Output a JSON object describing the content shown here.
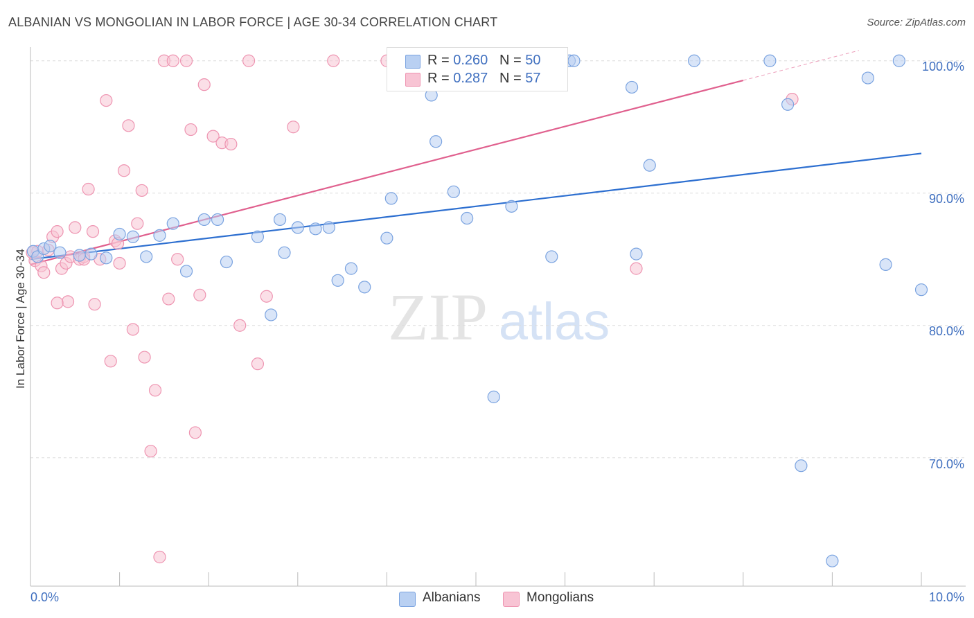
{
  "title": "ALBANIAN VS MONGOLIAN IN LABOR FORCE | AGE 30-34 CORRELATION CHART",
  "source": "Source: ZipAtlas.com",
  "watermark": {
    "zip": "ZIP",
    "atlas": "atlas"
  },
  "colors": {
    "albanian_fill": "#b9d0f2",
    "albanian_stroke": "#7aa3e0",
    "albanian_line": "#2d6fd0",
    "mongolian_fill": "#f8c4d4",
    "mongolian_stroke": "#ee94b1",
    "mongolian_line": "#e0608e",
    "axis_text": "#3f6fbf",
    "grid": "#dcdcdc"
  },
  "legend": {
    "albanian": {
      "r_label": "R =",
      "r_value": "0.260",
      "n_label": "N =",
      "n_value": "50"
    },
    "mongolian": {
      "r_label": "R =",
      "r_value": "0.287",
      "n_label": "N =",
      "n_value": "57"
    }
  },
  "bottom_legend": {
    "albanians": "Albanians",
    "mongolians": "Mongolians"
  },
  "chart_data": {
    "type": "scatter",
    "title": "ALBANIAN VS MONGOLIAN IN LABOR FORCE | AGE 30-34 CORRELATION CHART",
    "xlabel": "",
    "ylabel": "In Labor Force | Age 30-34",
    "xlim": [
      0,
      10
    ],
    "ylim": [
      60.3,
      102.5
    ],
    "x_tick_labels": {
      "left": "0.0%",
      "right": "10.0%"
    },
    "y_ticks": [
      {
        "value": 100,
        "label": "100.0%"
      },
      {
        "value": 90,
        "label": "90.0%"
      },
      {
        "value": 80,
        "label": "80.0%"
      },
      {
        "value": 70,
        "label": "70.0%"
      }
    ],
    "series": [
      {
        "name": "Albanians",
        "r": 0.26,
        "n": 50,
        "trend": {
          "x": [
            0,
            10
          ],
          "y": [
            85.0,
            93.0
          ],
          "dashed_from_x": null
        },
        "points": [
          [
            0.03,
            85.6
          ],
          [
            0.08,
            85.2
          ],
          [
            0.15,
            85.8
          ],
          [
            0.22,
            86.0
          ],
          [
            0.33,
            85.5
          ],
          [
            0.55,
            85.3
          ],
          [
            0.68,
            85.4
          ],
          [
            0.85,
            85.1
          ],
          [
            1.0,
            86.9
          ],
          [
            1.15,
            86.7
          ],
          [
            1.3,
            85.2
          ],
          [
            1.45,
            86.8
          ],
          [
            1.6,
            87.7
          ],
          [
            1.75,
            84.1
          ],
          [
            1.95,
            88.0
          ],
          [
            2.1,
            88.0
          ],
          [
            2.2,
            84.8
          ],
          [
            2.55,
            86.7
          ],
          [
            2.7,
            80.8
          ],
          [
            2.8,
            88.0
          ],
          [
            2.85,
            85.5
          ],
          [
            3.0,
            87.4
          ],
          [
            3.2,
            87.3
          ],
          [
            3.35,
            87.4
          ],
          [
            3.45,
            83.4
          ],
          [
            3.6,
            84.3
          ],
          [
            3.75,
            82.9
          ],
          [
            4.0,
            86.6
          ],
          [
            4.05,
            89.6
          ],
          [
            4.5,
            97.4
          ],
          [
            4.55,
            93.9
          ],
          [
            4.75,
            90.1
          ],
          [
            4.9,
            88.1
          ],
          [
            5.2,
            74.6
          ],
          [
            5.4,
            89.0
          ],
          [
            5.85,
            85.2
          ],
          [
            6.05,
            100.0
          ],
          [
            6.1,
            100.0
          ],
          [
            6.75,
            98.0
          ],
          [
            6.95,
            92.1
          ],
          [
            6.8,
            85.4
          ],
          [
            7.45,
            100.0
          ],
          [
            8.3,
            100.0
          ],
          [
            8.5,
            96.7
          ],
          [
            8.65,
            69.4
          ],
          [
            9.0,
            62.2
          ],
          [
            9.4,
            98.7
          ],
          [
            9.6,
            84.6
          ],
          [
            9.75,
            100.0
          ],
          [
            10.0,
            82.7
          ]
        ]
      },
      {
        "name": "Mongolians",
        "r": 0.287,
        "n": 57,
        "trend": {
          "x": [
            0,
            10
          ],
          "y": [
            84.6,
            102.0
          ],
          "dashed_from_x": 8.0
        },
        "points": [
          [
            0.02,
            85.5
          ],
          [
            0.05,
            84.9
          ],
          [
            0.08,
            85.6
          ],
          [
            0.12,
            84.5
          ],
          [
            0.15,
            84.0
          ],
          [
            0.2,
            85.7
          ],
          [
            0.25,
            86.7
          ],
          [
            0.3,
            87.1
          ],
          [
            0.35,
            84.3
          ],
          [
            0.4,
            84.7
          ],
          [
            0.42,
            81.8
          ],
          [
            0.45,
            85.2
          ],
          [
            0.5,
            87.4
          ],
          [
            0.55,
            85.0
          ],
          [
            0.6,
            85.2
          ],
          [
            0.65,
            90.3
          ],
          [
            0.7,
            87.1
          ],
          [
            0.72,
            81.6
          ],
          [
            0.78,
            85.0
          ],
          [
            0.85,
            97.0
          ],
          [
            0.9,
            77.3
          ],
          [
            0.95,
            86.4
          ],
          [
            0.98,
            86.2
          ],
          [
            1.0,
            84.7
          ],
          [
            1.05,
            91.7
          ],
          [
            1.1,
            95.1
          ],
          [
            1.15,
            79.7
          ],
          [
            1.2,
            87.7
          ],
          [
            1.25,
            90.2
          ],
          [
            1.28,
            77.6
          ],
          [
            1.35,
            70.5
          ],
          [
            1.4,
            75.1
          ],
          [
            1.45,
            62.5
          ],
          [
            1.5,
            100.0
          ],
          [
            1.55,
            82.0
          ],
          [
            1.6,
            100.0
          ],
          [
            1.65,
            85.0
          ],
          [
            1.75,
            100.0
          ],
          [
            1.8,
            94.8
          ],
          [
            1.85,
            71.9
          ],
          [
            1.9,
            82.3
          ],
          [
            1.95,
            98.2
          ],
          [
            2.05,
            94.3
          ],
          [
            2.15,
            93.8
          ],
          [
            2.25,
            93.7
          ],
          [
            2.35,
            80.0
          ],
          [
            2.45,
            100.0
          ],
          [
            2.55,
            77.1
          ],
          [
            2.65,
            82.2
          ],
          [
            2.95,
            95.0
          ],
          [
            3.4,
            100.0
          ],
          [
            4.0,
            100.0
          ],
          [
            4.1,
            100.0
          ],
          [
            6.8,
            84.3
          ],
          [
            8.55,
            97.1
          ],
          [
            0.3,
            81.7
          ],
          [
            0.6,
            85.0
          ]
        ]
      }
    ]
  }
}
